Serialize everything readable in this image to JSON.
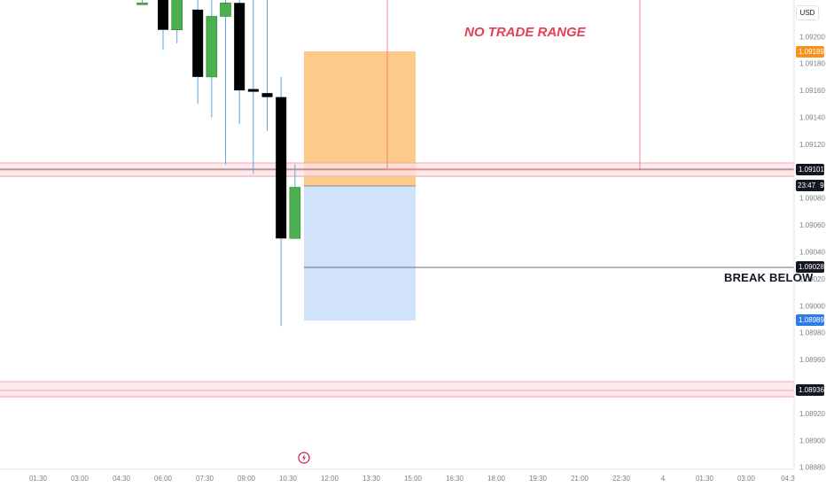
{
  "currency": "USD",
  "annotations": {
    "no_trade_range": "NO TRADE RANGE",
    "break_below": "BREAK BELOW"
  },
  "price_axis": {
    "ticks": [
      "1.09200",
      "1.09180",
      "1.09160",
      "1.09140",
      "1.09120",
      "1.09080",
      "1.09060",
      "1.09040",
      "1.09020",
      "1.09000",
      "1.08980",
      "1.08960",
      "1.08920",
      "1.08900",
      "1.08880"
    ]
  },
  "price_tags": {
    "orange": "1.09189",
    "level_top": "1.09101",
    "countdown": "23:47",
    "countdown_extra": "9",
    "break_level": "1.09028",
    "blue": "1.08989",
    "level_bottom": "1.08936"
  },
  "time_axis": {
    "ticks": [
      "01:30",
      "03:00",
      "04:30",
      "06:00",
      "07:30",
      "09:00",
      "10:30",
      "12:00",
      "13:30",
      "15:00",
      "16:30",
      "18:00",
      "19:30",
      "21:00",
      "22:30",
      "4",
      "01:30",
      "03:00",
      "04:3"
    ]
  },
  "colors": {
    "up": "#4caf50",
    "down": "#000000",
    "wick": "#5aa7e0",
    "zone_line": "#f2a5ad",
    "orange_box": "#fdc57c",
    "blue_box": "#d1e2fb",
    "ntr_line": "#ef6e78",
    "tag_orange": "#f7931a",
    "tag_blue": "#2e7ce6",
    "tag_black": "#131722"
  },
  "chart_data": {
    "type": "candlestick",
    "symbol_currency": "USD",
    "ylim": [
      1.0887,
      1.0922
    ],
    "candles": [
      {
        "t": "05:15",
        "o": 1.09225,
        "h": 1.0923,
        "l": 1.09225,
        "c": 1.09225
      },
      {
        "t": "06:00",
        "o": 1.0923,
        "h": 1.09235,
        "l": 1.0919,
        "c": 1.09205
      },
      {
        "t": "06:30",
        "o": 1.09205,
        "h": 1.0923,
        "l": 1.09195,
        "c": 1.0923
      },
      {
        "t": "07:15",
        "o": 1.0922,
        "h": 1.0923,
        "l": 1.0915,
        "c": 1.0917
      },
      {
        "t": "07:45",
        "o": 1.0917,
        "h": 1.0923,
        "l": 1.0914,
        "c": 1.09215
      },
      {
        "t": "08:15",
        "o": 1.09215,
        "h": 1.0924,
        "l": 1.09105,
        "c": 1.09225
      },
      {
        "t": "08:45",
        "o": 1.09225,
        "h": 1.0923,
        "l": 1.09135,
        "c": 1.0916
      },
      {
        "t": "09:15",
        "o": 1.09161,
        "h": 1.0923,
        "l": 1.09098,
        "c": 1.09159
      },
      {
        "t": "09:45",
        "o": 1.09158,
        "h": 1.0923,
        "l": 1.0913,
        "c": 1.09155
      },
      {
        "t": "10:15",
        "o": 1.09155,
        "h": 1.0917,
        "l": 1.08985,
        "c": 1.0905
      },
      {
        "t": "10:45",
        "o": 1.0905,
        "h": 1.09105,
        "l": 1.0905,
        "c": 1.09088
      }
    ],
    "levels": [
      1.09101,
      1.09028,
      1.08936
    ],
    "boxes": [
      {
        "kind": "stop",
        "from": 1.09088,
        "to": 1.09189
      },
      {
        "kind": "target",
        "from": 1.08989,
        "to": 1.09088
      }
    ]
  }
}
